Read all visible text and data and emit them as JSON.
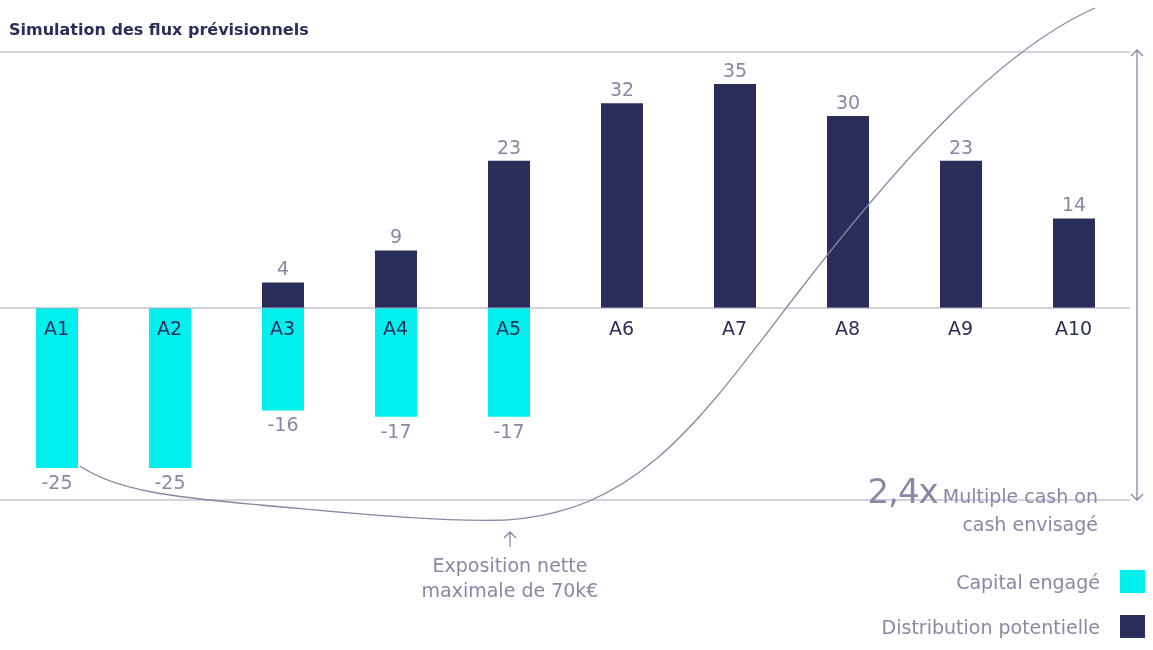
{
  "chart_data": {
    "type": "bar",
    "title": "Simulation des flux prévisionnels",
    "categories": [
      "A1",
      "A2",
      "A3",
      "A4",
      "A5",
      "A6",
      "A7",
      "A8",
      "A9",
      "A10"
    ],
    "series": [
      {
        "name": "Capital engagé",
        "color": "#00f0ee",
        "values": [
          -25,
          -25,
          -16,
          -17,
          -17,
          null,
          null,
          null,
          null,
          null
        ]
      },
      {
        "name": "Distribution potentielle",
        "color": "#2b2e5a",
        "values": [
          null,
          null,
          4,
          9,
          23,
          32,
          35,
          30,
          23,
          14
        ]
      }
    ],
    "stacked": true,
    "data_labels": true,
    "ylim": [
      -30,
      40
    ],
    "tick_labels": "x",
    "grid": "y",
    "legend": "bottom right",
    "annotations": [
      "2,4x",
      "Multiple cash on cash envisagé",
      "Exposition nette maximale de 70k€"
    ]
  }
}
